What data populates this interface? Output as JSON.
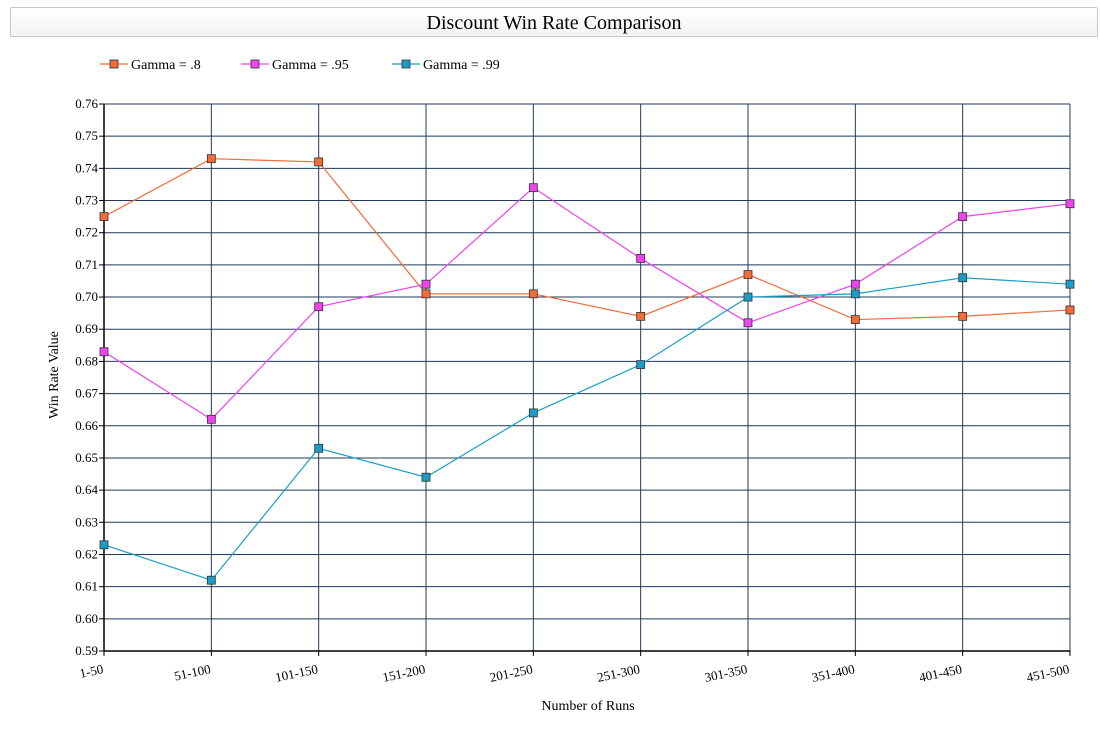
{
  "chart_data": {
    "type": "line",
    "title": "Discount Win Rate Comparison",
    "xlabel": "Number of Runs",
    "ylabel": "Win Rate Value",
    "categories": [
      "1-50",
      "51-100",
      "101-150",
      "151-200",
      "201-250",
      "251-300",
      "301-350",
      "351-400",
      "401-450",
      "451-500"
    ],
    "ylim": [
      0.59,
      0.76
    ],
    "yticks": [
      "0.59",
      "0.60",
      "0.61",
      "0.62",
      "0.63",
      "0.64",
      "0.65",
      "0.66",
      "0.67",
      "0.68",
      "0.69",
      "0.70",
      "0.71",
      "0.72",
      "0.73",
      "0.74",
      "0.75",
      "0.76"
    ],
    "grid": true,
    "legend_position": "top-left",
    "series": [
      {
        "name": "Gamma = .8",
        "color": "#f26b3a",
        "values": [
          0.725,
          0.743,
          0.742,
          0.701,
          0.701,
          0.694,
          0.707,
          0.693,
          0.694,
          0.696
        ]
      },
      {
        "name": "Gamma = .95",
        "color": "#ee44ee",
        "values": [
          0.683,
          0.662,
          0.697,
          0.704,
          0.734,
          0.712,
          0.692,
          0.704,
          0.725,
          0.729
        ]
      },
      {
        "name": "Gamma = .99",
        "color": "#1a9cc6",
        "values": [
          0.623,
          0.612,
          0.653,
          0.644,
          0.664,
          0.679,
          0.7,
          0.701,
          0.706,
          0.704
        ]
      }
    ]
  }
}
